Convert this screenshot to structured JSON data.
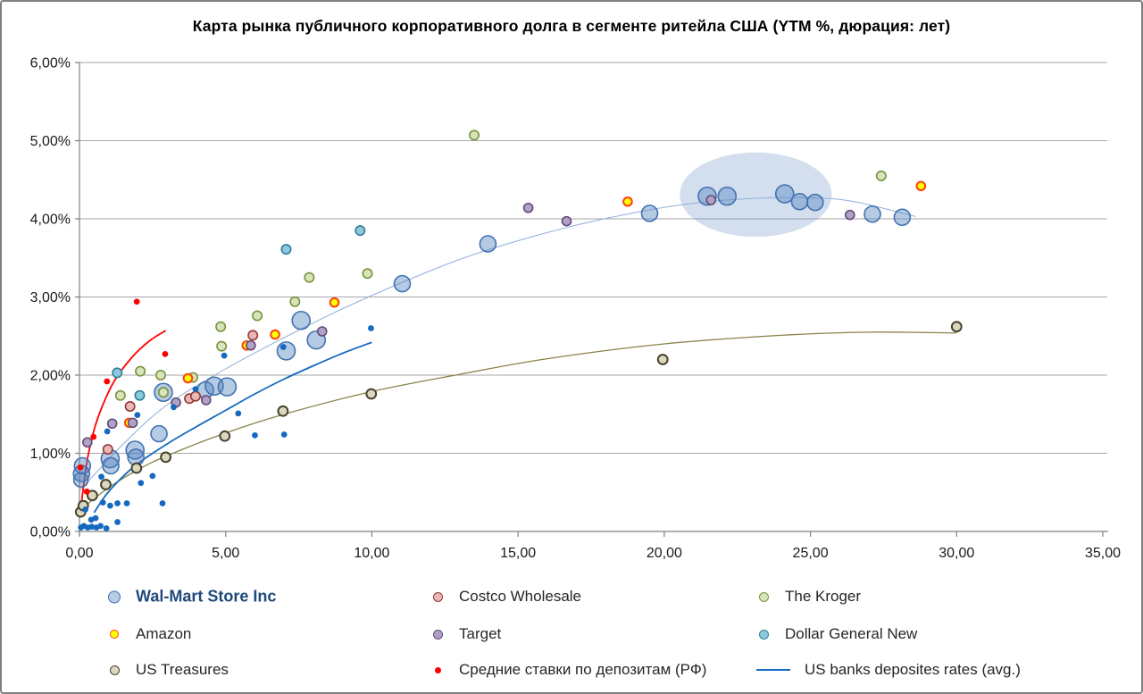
{
  "title": "Карта рынка публичного корпоративного долга в сегменте ритейла США (YTM %, дюрация: лет)",
  "axes": {
    "x": {
      "min": 0,
      "max": 35,
      "tick_values": [
        0,
        5,
        10,
        15,
        20,
        25,
        30,
        35
      ],
      "tick_labels": [
        "0,00",
        "5,00",
        "10,00",
        "15,00",
        "20,00",
        "25,00",
        "30,00",
        "35,00"
      ]
    },
    "y": {
      "min": 0,
      "max": 6,
      "tick_values": [
        0,
        1,
        2,
        3,
        4,
        5,
        6
      ],
      "tick_labels": [
        "0,00%",
        "1,00%",
        "2,00%",
        "3,00%",
        "4,00%",
        "5,00%",
        "6,00%"
      ]
    }
  },
  "colors": {
    "grid": "#A6A6A6",
    "axis": "#808080",
    "highlight_ellipse": "#4F81BD",
    "walmart_accent": "#1F497D"
  },
  "chart_data": {
    "type": "scatter",
    "title": "Карта рынка публичного корпоративного долга в сегменте ритейла США (YTM %, дюрация: лет)",
    "xlabel": "",
    "ylabel": "",
    "xlim": [
      0,
      35
    ],
    "ylim": [
      0,
      6
    ],
    "grid": "horizontal",
    "legend_position": "bottom",
    "series": [
      {
        "id": "wal-mart",
        "name": "Wal-Mart Store Inc",
        "marker": "bubble",
        "fill": "#4F81BD",
        "fill_opacity": 0.42,
        "stroke": "#4272B0",
        "stroke_width": 1.6,
        "size": 10,
        "points": [
          [
            0.1,
            0.84,
            9
          ],
          [
            0.07,
            0.74,
            9
          ],
          [
            0.05,
            0.66,
            8
          ],
          [
            1.05,
            0.93,
            10
          ],
          [
            1.07,
            0.84,
            9
          ],
          [
            1.9,
            1.04,
            10
          ],
          [
            1.93,
            0.95,
            9
          ],
          [
            2.72,
            1.25,
            9
          ],
          [
            2.87,
            1.78,
            10
          ],
          [
            4.31,
            1.81,
            9
          ],
          [
            4.61,
            1.86,
            10
          ],
          [
            5.05,
            1.85,
            10
          ],
          [
            7.07,
            2.31,
            10
          ],
          [
            7.58,
            2.7,
            10
          ],
          [
            8.1,
            2.45,
            10
          ],
          [
            11.04,
            3.17,
            9
          ],
          [
            13.97,
            3.68,
            9
          ],
          [
            19.5,
            4.07,
            9
          ],
          [
            21.47,
            4.29,
            10
          ],
          [
            22.15,
            4.29,
            10
          ],
          [
            24.12,
            4.32,
            10
          ],
          [
            24.63,
            4.22,
            9
          ],
          [
            25.16,
            4.21,
            9
          ],
          [
            27.12,
            4.06,
            9
          ],
          [
            28.14,
            4.02,
            9
          ]
        ]
      },
      {
        "id": "costco",
        "name": "Costco Wholesale",
        "marker": "circle",
        "fill": "#E6B9B8",
        "fill_opacity": 1,
        "stroke": "#963634",
        "stroke_width": 1.6,
        "size": 5.2,
        "points": [
          [
            0.97,
            1.05
          ],
          [
            1.73,
            1.6
          ],
          [
            3.76,
            1.7
          ],
          [
            3.97,
            1.73
          ],
          [
            5.93,
            2.51
          ]
        ]
      },
      {
        "id": "kroger",
        "name": "The Kroger",
        "marker": "circle",
        "fill": "#D8E4BC",
        "fill_opacity": 1,
        "stroke": "#77933C",
        "stroke_width": 1.6,
        "size": 5.2,
        "points": [
          [
            1.4,
            1.74
          ],
          [
            2.08,
            2.05
          ],
          [
            2.78,
            2.0
          ],
          [
            2.87,
            1.78
          ],
          [
            3.88,
            1.97
          ],
          [
            4.83,
            2.62
          ],
          [
            4.86,
            2.37
          ],
          [
            6.08,
            2.76
          ],
          [
            7.37,
            2.94
          ],
          [
            7.86,
            3.25
          ],
          [
            9.85,
            3.3
          ],
          [
            13.5,
            5.07
          ],
          [
            27.42,
            4.55
          ]
        ]
      },
      {
        "id": "amazon",
        "name": "Amazon",
        "marker": "circle",
        "fill": "#FFFF00",
        "fill_opacity": 1,
        "stroke": "#FF4013",
        "stroke_width": 2,
        "size": 4.8,
        "points": [
          [
            1.7,
            1.39
          ],
          [
            3.71,
            1.96
          ],
          [
            5.72,
            2.38
          ],
          [
            6.69,
            2.52
          ],
          [
            8.72,
            2.93
          ],
          [
            18.75,
            4.22
          ],
          [
            28.78,
            4.42
          ]
        ]
      },
      {
        "id": "target",
        "name": "Target",
        "marker": "circle",
        "fill": "#B2A1C7",
        "fill_opacity": 1,
        "stroke": "#5F4B77",
        "stroke_width": 1.6,
        "size": 5,
        "points": [
          [
            0.27,
            1.14
          ],
          [
            1.12,
            1.38
          ],
          [
            1.82,
            1.39
          ],
          [
            3.3,
            1.65
          ],
          [
            4.33,
            1.68
          ],
          [
            5.86,
            2.38
          ],
          [
            8.3,
            2.56
          ],
          [
            15.35,
            4.14
          ],
          [
            16.66,
            3.97
          ],
          [
            21.6,
            4.24
          ],
          [
            26.35,
            4.05
          ]
        ]
      },
      {
        "id": "dollar-general",
        "name": "Dollar General New",
        "marker": "circle",
        "fill": "#8FC8DC",
        "fill_opacity": 1,
        "stroke": "#2E7F99",
        "stroke_width": 1.6,
        "size": 5.2,
        "points": [
          [
            1.29,
            2.03
          ],
          [
            2.06,
            1.74
          ],
          [
            7.07,
            3.61
          ],
          [
            9.6,
            3.85
          ]
        ]
      },
      {
        "id": "us-treasures",
        "name": "US Treasures",
        "marker": "circle",
        "fill": "#DCD8C0",
        "fill_opacity": 1,
        "stroke": "#47422B",
        "stroke_width": 2,
        "size": 5.4,
        "points": [
          [
            0.04,
            0.25
          ],
          [
            0.13,
            0.33
          ],
          [
            0.44,
            0.46
          ],
          [
            0.9,
            0.6
          ],
          [
            1.95,
            0.81
          ],
          [
            2.95,
            0.95
          ],
          [
            4.97,
            1.22
          ],
          [
            6.96,
            1.54
          ],
          [
            9.98,
            1.76
          ],
          [
            19.95,
            2.2
          ],
          [
            30.0,
            2.62
          ]
        ]
      },
      {
        "id": "rf-deposit-rates",
        "name": "Средние ставки по депозитам (РФ)",
        "marker": "dot",
        "fill": "#FF0000",
        "fill_opacity": 1,
        "stroke": "none",
        "stroke_width": 0,
        "size": 3.4,
        "points": [
          [
            0.03,
            0.82
          ],
          [
            0.25,
            0.51
          ],
          [
            0.48,
            1.21
          ],
          [
            0.94,
            1.92
          ],
          [
            1.96,
            2.94
          ],
          [
            2.93,
            2.27
          ]
        ]
      },
      {
        "id": "us-banks-rates",
        "name": "US banks deposites rates (avg.)",
        "marker": "dot",
        "fill": "#1569C0",
        "fill_opacity": 1,
        "stroke": "none",
        "stroke_width": 0,
        "size": 3.4,
        "points": [
          [
            0.05,
            0.05
          ],
          [
            0.15,
            0.07
          ],
          [
            0.28,
            0.05
          ],
          [
            0.42,
            0.06
          ],
          [
            0.58,
            0.05
          ],
          [
            0.72,
            0.07
          ],
          [
            0.92,
            0.04
          ],
          [
            1.3,
            0.12
          ],
          [
            0.2,
            0.28
          ],
          [
            0.4,
            0.15
          ],
          [
            0.55,
            0.17
          ],
          [
            0.8,
            0.37
          ],
          [
            1.05,
            0.33
          ],
          [
            1.3,
            0.36
          ],
          [
            1.62,
            0.36
          ],
          [
            2.84,
            0.36
          ],
          [
            0.75,
            0.7
          ],
          [
            2.1,
            0.62
          ],
          [
            2.5,
            0.71
          ],
          [
            0.95,
            1.28
          ],
          [
            1.98,
            1.49
          ],
          [
            3.22,
            1.59
          ],
          [
            3.97,
            1.82
          ],
          [
            4.95,
            2.25
          ],
          [
            5.43,
            1.51
          ],
          [
            6.0,
            1.23
          ],
          [
            6.97,
            2.36
          ],
          [
            7.0,
            1.24
          ],
          [
            9.97,
            2.6
          ]
        ]
      }
    ],
    "trend_lines": [
      {
        "series": "wal-mart",
        "color": "#8FAEDC",
        "width": 1,
        "points": [
          [
            0.0,
            0.52
          ],
          [
            1.5,
            1.12
          ],
          [
            3,
            1.62
          ],
          [
            5,
            2.08
          ],
          [
            7,
            2.48
          ],
          [
            9,
            2.85
          ],
          [
            11,
            3.18
          ],
          [
            13,
            3.48
          ],
          [
            15,
            3.72
          ],
          [
            17,
            3.92
          ],
          [
            19,
            4.08
          ],
          [
            21,
            4.2
          ],
          [
            23,
            4.26
          ],
          [
            25,
            4.27
          ],
          [
            26.5,
            4.22
          ],
          [
            28.6,
            4.03
          ]
        ]
      },
      {
        "series": "us-treasures",
        "color": "#8A8349",
        "width": 1.3,
        "points": [
          [
            0.0,
            0.27
          ],
          [
            1,
            0.56
          ],
          [
            2,
            0.79
          ],
          [
            3,
            0.97
          ],
          [
            5,
            1.26
          ],
          [
            7,
            1.5
          ],
          [
            10,
            1.79
          ],
          [
            13,
            2.01
          ],
          [
            16,
            2.21
          ],
          [
            20,
            2.4
          ],
          [
            24,
            2.51
          ],
          [
            27,
            2.55
          ],
          [
            30,
            2.54
          ]
        ]
      },
      {
        "series": "rf-deposit-rates",
        "color": "#FF0000",
        "width": 1.8,
        "points": [
          [
            0.08,
            0.4
          ],
          [
            0.25,
            0.88
          ],
          [
            0.5,
            1.3
          ],
          [
            0.8,
            1.62
          ],
          [
            1.2,
            1.93
          ],
          [
            1.8,
            2.23
          ],
          [
            2.4,
            2.44
          ],
          [
            2.95,
            2.57
          ]
        ]
      },
      {
        "series": "us-banks-rates",
        "color": "#1569C0",
        "width": 1.8,
        "points": [
          [
            0.5,
            0.24
          ],
          [
            1.0,
            0.51
          ],
          [
            1.9,
            0.84
          ],
          [
            3.0,
            1.12
          ],
          [
            4.0,
            1.34
          ],
          [
            5.0,
            1.55
          ],
          [
            6.0,
            1.76
          ],
          [
            7.0,
            1.95
          ],
          [
            8.0,
            2.12
          ],
          [
            9.0,
            2.28
          ],
          [
            10.0,
            2.42
          ]
        ]
      }
    ],
    "annotations": [
      {
        "type": "ellipse",
        "cx": 23.13,
        "cy": 4.31,
        "rx": 2.6,
        "ry": 0.54,
        "fill": "#4F81BD",
        "opacity": 0.25,
        "note": "highlight of Wal-Mart long-duration cluster"
      }
    ]
  },
  "legend": {
    "items": [
      {
        "id": "wal-mart",
        "label": "Wal-Mart Store Inc",
        "marker": "circle",
        "fill": "#B9CDE5",
        "stroke": "#4272B0",
        "r": 7,
        "bold": true,
        "row": 0,
        "col": 0
      },
      {
        "id": "costco",
        "label": "Costco Wholesale",
        "marker": "circle",
        "fill": "#E6B9B8",
        "stroke": "#963634",
        "r": 5.5,
        "bold": false,
        "row": 0,
        "col": 1
      },
      {
        "id": "kroger",
        "label": "The Kroger",
        "marker": "circle",
        "fill": "#D8E4BC",
        "stroke": "#77933C",
        "r": 5.5,
        "bold": false,
        "row": 0,
        "col": 2
      },
      {
        "id": "amazon",
        "label": "Amazon",
        "marker": "circle",
        "fill": "#FFFF00",
        "stroke": "#FF4013",
        "r": 5,
        "bold": false,
        "row": 1,
        "col": 0
      },
      {
        "id": "target",
        "label": "Target",
        "marker": "circle",
        "fill": "#B2A1C7",
        "stroke": "#5F4B77",
        "r": 5.5,
        "bold": false,
        "row": 1,
        "col": 1
      },
      {
        "id": "dollar-general",
        "label": "Dollar General New",
        "marker": "circle",
        "fill": "#8FC8DC",
        "stroke": "#2E7F99",
        "r": 5.5,
        "bold": false,
        "row": 1,
        "col": 2
      },
      {
        "id": "us-treasures",
        "label": "US Treasures",
        "marker": "circle",
        "fill": "#DCD8C0",
        "stroke": "#47422B",
        "r": 5.5,
        "bold": false,
        "row": 2,
        "col": 0
      },
      {
        "id": "rf-deposit-rates",
        "label": "Средние ставки по депозитам (РФ)",
        "marker": "dot",
        "fill": "#FF0000",
        "stroke": "none",
        "r": 3.5,
        "bold": false,
        "row": 2,
        "col": 1
      },
      {
        "id": "us-banks-rates",
        "label": "US banks deposites rates (avg.)",
        "marker": "line",
        "fill": "none",
        "stroke": "#1569C0",
        "r": 0,
        "bold": false,
        "row": 2,
        "col": 2
      }
    ]
  }
}
